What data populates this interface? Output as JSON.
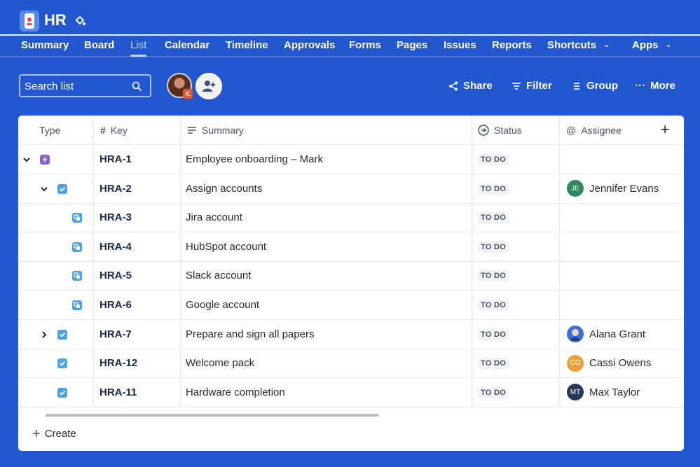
{
  "app": {
    "title": "HR",
    "icons": {
      "logo": "phone-app-icon",
      "customize": "paint-bucket-icon"
    }
  },
  "tabs": [
    {
      "label": "Summary"
    },
    {
      "label": "Board"
    },
    {
      "label": "List",
      "active": true
    },
    {
      "label": "Calendar"
    },
    {
      "label": "Timeline"
    },
    {
      "label": "Approvals"
    },
    {
      "label": "Forms"
    },
    {
      "label": "Pages"
    },
    {
      "label": "Issues"
    },
    {
      "label": "Reports"
    },
    {
      "label": "Shortcuts",
      "dropdown": true
    },
    {
      "label": "Apps",
      "dropdown": true
    }
  ],
  "toolbar": {
    "search_placeholder": "Search list",
    "avatar_badge": "K",
    "share": "Share",
    "filter": "Filter",
    "group": "Group",
    "more": "More"
  },
  "table": {
    "headers": {
      "type": "Type",
      "key": "Key",
      "summary": "Summary",
      "status": "Status",
      "assignee": "Assignee"
    },
    "rows": [
      {
        "type": "epic",
        "key": "HRA-1",
        "summary": "Employee onboarding – Mark",
        "status": "TO DO",
        "assignee": "",
        "expander": "expanded"
      },
      {
        "type": "task",
        "key": "HRA-2",
        "summary": "Assign accounts",
        "status": "TO DO",
        "assignee": "Jennifer Evans",
        "initials": "JE",
        "avatar_color": "#2f8a5b",
        "expander": "expanded"
      },
      {
        "type": "subtask",
        "key": "HRA-3",
        "summary": "Jira account",
        "status": "TO DO",
        "assignee": ""
      },
      {
        "type": "subtask",
        "key": "HRA-4",
        "summary": "HubSpot account",
        "status": "TO DO",
        "assignee": ""
      },
      {
        "type": "subtask",
        "key": "HRA-5",
        "summary": "Slack account",
        "status": "TO DO",
        "assignee": ""
      },
      {
        "type": "subtask",
        "key": "HRA-6",
        "summary": "Google account",
        "status": "TO DO",
        "assignee": ""
      },
      {
        "type": "task",
        "key": "HRA-7",
        "summary": "Prepare and sign all papers",
        "status": "TO DO",
        "assignee": "Alana Grant",
        "initials": "",
        "avatar_color": "#3b6fd8",
        "expander": "collapsed"
      },
      {
        "type": "task",
        "key": "HRA-12",
        "summary": "Welcome pack",
        "status": "TO DO",
        "assignee": "Cassi Owens",
        "initials": "CO",
        "avatar_color": "#e9a13b"
      },
      {
        "type": "task",
        "key": "HRA-11",
        "summary": "Hardware completion",
        "status": "TO DO",
        "assignee": "Max Taylor",
        "initials": "MT",
        "avatar_color": "#253858"
      }
    ]
  },
  "create_label": "Create",
  "colors": {
    "background": "#2357d0",
    "epic": "#8b5fd9",
    "task": "#4ba3e3"
  }
}
